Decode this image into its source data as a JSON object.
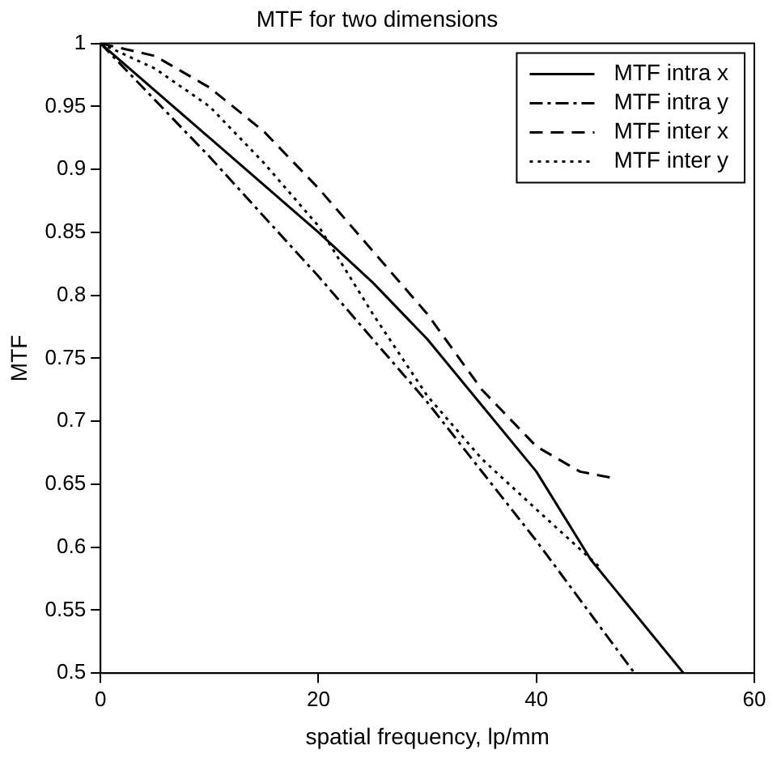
{
  "chart_data": {
    "type": "line",
    "title": "MTF for two dimensions",
    "xlabel": "spatial frequency, lp/mm",
    "ylabel": "MTF",
    "xlim": [
      0,
      60
    ],
    "xticks": [
      0,
      20,
      40,
      60
    ],
    "ylim": [
      0.5,
      1
    ],
    "yticks": [
      0.5,
      0.55,
      0.6,
      0.65,
      0.7,
      0.75,
      0.8,
      0.85,
      0.9,
      0.95,
      1
    ],
    "grid": false,
    "legend": "top right",
    "marker": "none",
    "series": [
      {
        "name": "MTF intra x",
        "color": "#000000",
        "line_style": "solid",
        "x": [
          0,
          10,
          20,
          25,
          30,
          40,
          45,
          53.5
        ],
        "values": [
          1,
          0.925,
          0.85,
          0.81,
          0.765,
          0.66,
          0.59,
          0.5
        ]
      },
      {
        "name": "MTF intra y",
        "color": "#000000",
        "line_style": "dashdot",
        "x": [
          0,
          10,
          20,
          30,
          40,
          49
        ],
        "values": [
          1,
          0.91,
          0.815,
          0.715,
          0.605,
          0.5
        ]
      },
      {
        "name": "MTF inter x",
        "color": "#000000",
        "line_style": "dashed",
        "x": [
          0,
          5,
          10,
          15,
          20,
          25,
          30,
          35,
          40,
          44,
          47
        ],
        "values": [
          1,
          0.99,
          0.965,
          0.93,
          0.885,
          0.835,
          0.785,
          0.725,
          0.68,
          0.66,
          0.655
        ]
      },
      {
        "name": "MTF inter y",
        "color": "#000000",
        "line_style": "dotted",
        "x": [
          0,
          5,
          10,
          15,
          20,
          25,
          30,
          35,
          40,
          45.7
        ],
        "values": [
          1,
          0.98,
          0.95,
          0.905,
          0.855,
          0.785,
          0.72,
          0.67,
          0.63,
          0.585
        ]
      }
    ]
  }
}
